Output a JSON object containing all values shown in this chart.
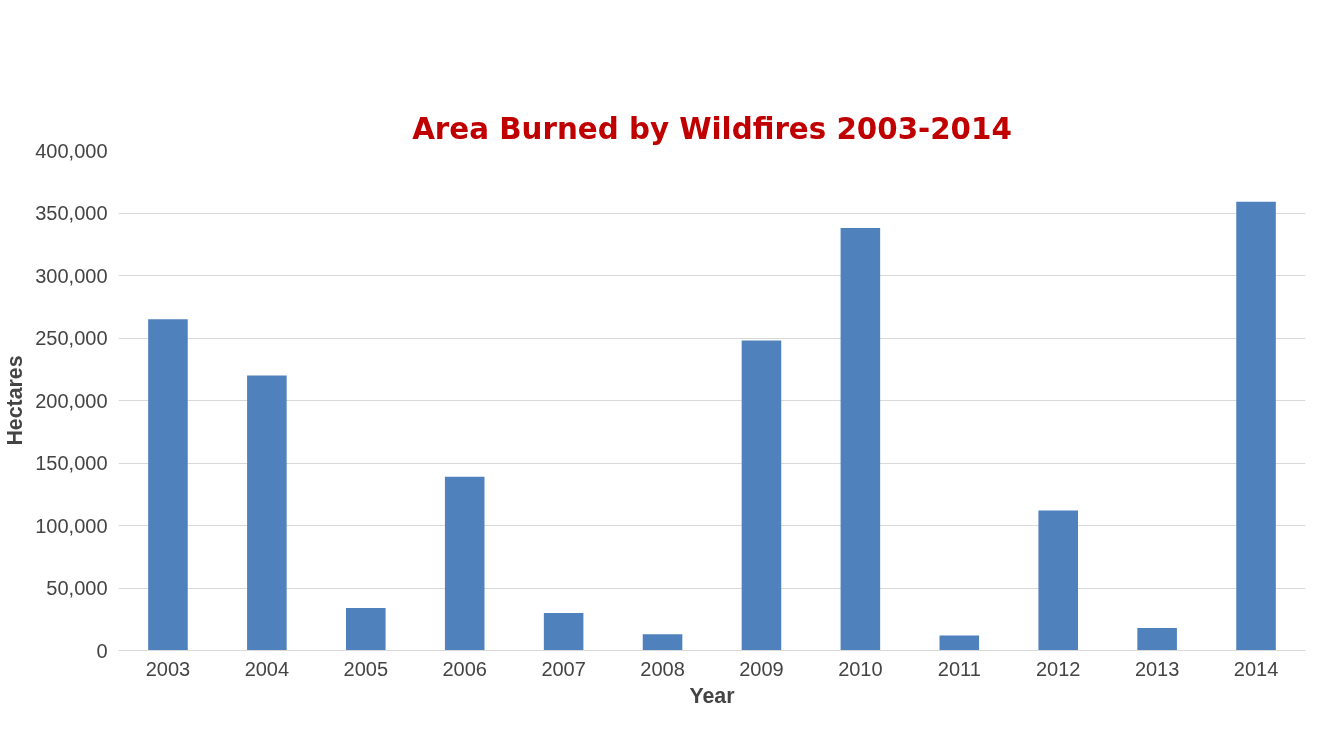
{
  "chart_data": {
    "type": "bar",
    "title": "Area Burned by Wildfires 2003-2014",
    "xlabel": "Year",
    "ylabel": "Hectares",
    "categories": [
      "2003",
      "2004",
      "2005",
      "2006",
      "2007",
      "2008",
      "2009",
      "2010",
      "2011",
      "2012",
      "2013",
      "2014"
    ],
    "values": [
      265000,
      220000,
      34000,
      139000,
      30000,
      13000,
      248000,
      338000,
      12000,
      112000,
      18000,
      359000
    ],
    "color": "#4f81bd",
    "ylim": [
      0,
      400000
    ],
    "yticks": [
      0,
      {
        "value": 50000,
        "label": "50,000"
      },
      {
        "value": 100000,
        "label": "100,000"
      },
      {
        "value": 150000,
        "label": "150,000"
      },
      {
        "value": 200000,
        "label": "200,000"
      },
      {
        "value": 250000,
        "label": "250,000"
      },
      {
        "value": 300000,
        "label": "300,000"
      },
      {
        "value": 350000,
        "label": "350,000"
      },
      {
        "value": 400000,
        "label": "400,000"
      }
    ],
    "grid": "y"
  }
}
